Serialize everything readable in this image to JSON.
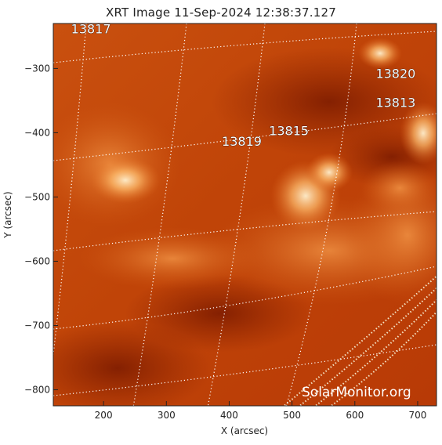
{
  "title": "XRT Image 11-Sep-2024 12:38:37.127",
  "watermark": "SolarMonitor.org",
  "chart_data": {
    "type": "image",
    "title": "XRT Image 11-Sep-2024 12:38:37.127",
    "xlabel": "X (arcsec)",
    "ylabel": "Y (arcsec)",
    "xlim": [
      120,
      730
    ],
    "ylim": [
      -825,
      -230
    ],
    "x_ticks": [
      200,
      300,
      400,
      500,
      600,
      700
    ],
    "y_ticks": [
      -300,
      -400,
      -500,
      -600,
      -700,
      -800
    ],
    "grid": "heliographic, dotted white",
    "colormap": "orange-red (XRT)",
    "active_regions": [
      {
        "label": "13817",
        "x": 180,
        "y": -245
      },
      {
        "label": "13820",
        "x": 665,
        "y": -315
      },
      {
        "label": "13813",
        "x": 665,
        "y": -360
      },
      {
        "label": "13815",
        "x": 495,
        "y": -404
      },
      {
        "label": "13819",
        "x": 420,
        "y": -420
      }
    ]
  },
  "colors": {
    "background": "#c24a0c",
    "bright": "#ffe0a8",
    "dark": "#8a1e00",
    "grid": "#ffffff"
  }
}
